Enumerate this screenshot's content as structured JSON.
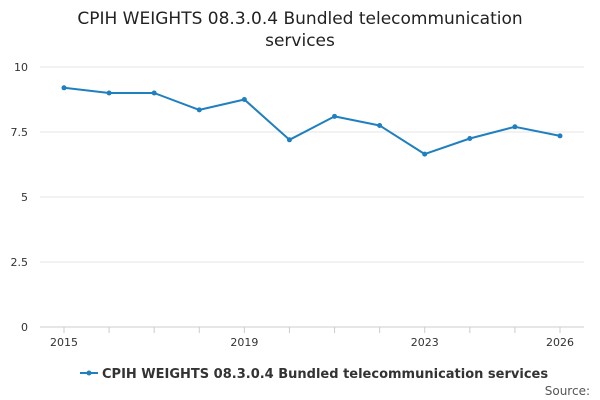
{
  "chart_data": {
    "type": "line",
    "title_lines": [
      "CPIH WEIGHTS 08.3.0.4 Bundled telecommunication",
      "services"
    ],
    "x": [
      2015,
      2016,
      2017,
      2018,
      2019,
      2020,
      2021,
      2022,
      2023,
      2024,
      2025,
      2026
    ],
    "x_tick_labels": [
      "2015",
      "2019",
      "2023",
      "2026"
    ],
    "y_ticks": [
      0,
      2.5,
      5,
      7.5,
      10
    ],
    "y_tick_labels": [
      "0",
      "2.5",
      "5",
      "7.5",
      "10"
    ],
    "ylim": [
      0,
      10
    ],
    "xlim": [
      2015,
      2026
    ],
    "grid": "horizontal",
    "legend_position": "bottom",
    "series": [
      {
        "name": "CPIH WEIGHTS 08.3.0.4 Bundled telecommunication services",
        "color": "#1f7fc0",
        "values": [
          9.2,
          9.0,
          9.0,
          8.35,
          8.75,
          7.2,
          8.1,
          7.75,
          6.65,
          7.25,
          7.7,
          7.35
        ]
      }
    ]
  },
  "source_label": "Source:"
}
